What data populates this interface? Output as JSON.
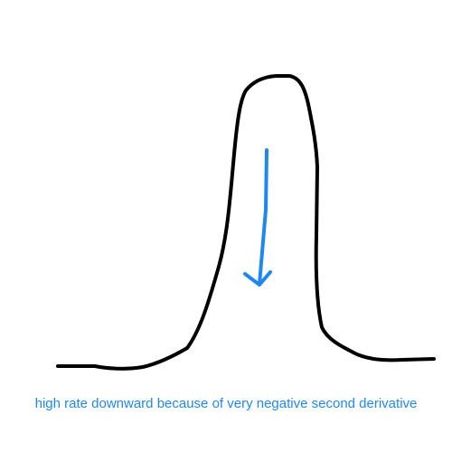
{
  "caption": "high rate downward because of very negative second derivative",
  "colors": {
    "curve": "#000000",
    "arrow": "#1e88f0",
    "caption": "#1e88f0",
    "background": "#ffffff"
  },
  "icons": {
    "arrow": "down-arrow-icon"
  }
}
